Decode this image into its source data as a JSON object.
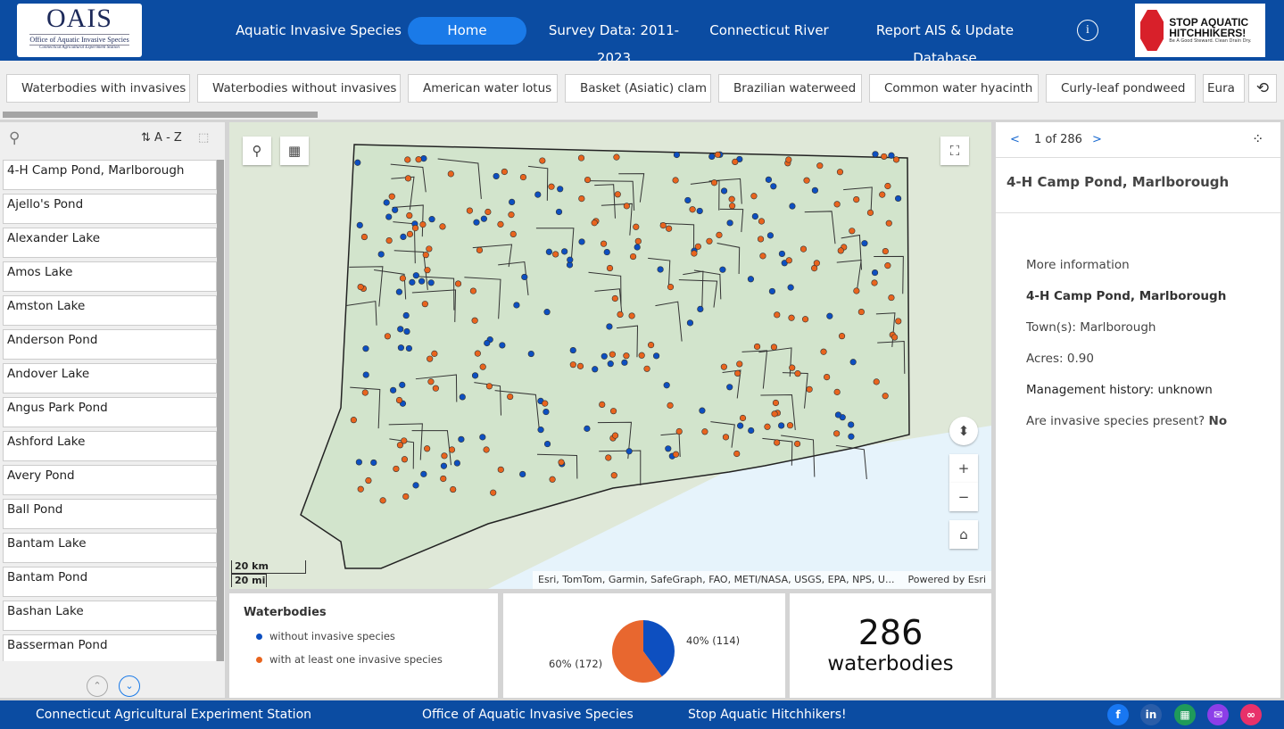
{
  "header": {
    "logo_text": "OAIS",
    "logo_sub": "Office of Aquatic Invasive Species",
    "logo_sub2": "Connecticut Agricultural Experiment Station",
    "nav": [
      "Aquatic Invasive Species",
      "Home",
      "Survey Data: 2011-2023",
      "Connecticut River",
      "Report AIS & Update Database"
    ],
    "active_nav": "Home",
    "info_icon": "info-icon",
    "stop_logo": "STOP AQUATIC HITCHHIKERS!",
    "stop_tag": "Be A Good Steward. Clean Drain Dry."
  },
  "filters": [
    "Waterbodies with invasives",
    "Waterbodies without invasives",
    "American water lotus",
    "Basket (Asiatic) clam",
    "Brazilian waterweed",
    "Common water hyacinth",
    "Curly-leaf pondweed",
    "Eura"
  ],
  "list": {
    "sort_label": "A - Z",
    "items": [
      "4-H Camp Pond, Marlborough",
      "Ajello's Pond",
      "Alexander Lake",
      "Amos Lake",
      "Amston Lake",
      "Anderson Pond",
      "Andover Lake",
      "Angus Park Pond",
      "Ashford Lake",
      "Avery Pond",
      "Ball Pond",
      "Bantam Lake",
      "Bantam Pond",
      "Bashan Lake",
      "Basserman Pond"
    ]
  },
  "map": {
    "attribution": "Esri, TomTom, Garmin, SafeGraph, FAO, METI/NASA, USGS, EPA, NPS, U...",
    "powered": "Powered by Esri",
    "scale_km": "20 km",
    "scale_mi": "20 mi",
    "colors": {
      "without": "#0d4fc0",
      "with": "#e8641e",
      "land": "#dfe8d8",
      "water": "#e6f3fb"
    }
  },
  "legend": {
    "title": "Waterbodies",
    "items": [
      "without invasive species",
      "with at least one invasive species"
    ]
  },
  "pie": {
    "labels": [
      "40% (114)",
      "60% (172)"
    ],
    "values": [
      114,
      172
    ],
    "colors": [
      "#0d4fc0",
      "#e8672f"
    ]
  },
  "count": {
    "value": "286",
    "label": "waterbodies"
  },
  "detail": {
    "pager": "1 of 286",
    "title": "4-H Camp Pond, Marlborough",
    "more": "More information",
    "name": "4-H Camp Pond, Marlborough",
    "towns": "Town(s): Marlborough",
    "acres": "Acres: 0.90",
    "mgmt": "Management history: unknown",
    "present_q": "Are invasive species present?",
    "present_a": "No"
  },
  "footer": {
    "links": [
      "Connecticut Agricultural Experiment Station",
      "Office of Aquatic Invasive Species",
      "Stop Aquatic Hitchhikers!"
    ],
    "social": [
      "facebook-icon",
      "linkedin-icon",
      "qr-code-icon",
      "email-icon",
      "link-icon"
    ]
  }
}
